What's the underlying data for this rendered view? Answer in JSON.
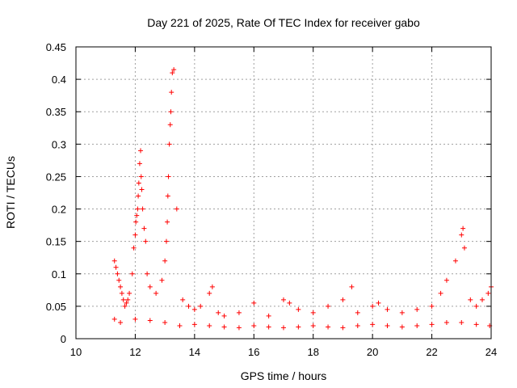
{
  "chart_data": {
    "type": "scatter",
    "title": "Day 221 of 2025, Rate Of TEC Index for receiver gabo",
    "xlabel": "GPS time / hours",
    "ylabel": "ROTI / TECUs",
    "xlim": [
      10,
      24
    ],
    "ylim": [
      0,
      0.45
    ],
    "grid": true,
    "marker": "+",
    "color": "#ff0000",
    "xticks": [
      10,
      12,
      14,
      16,
      18,
      20,
      22,
      24
    ],
    "xtick_labels": [
      "10",
      "12",
      "14",
      "16",
      "18",
      "20",
      "22",
      "24"
    ],
    "yticks": [
      0,
      0.05,
      0.1,
      0.15,
      0.2,
      0.25,
      0.3,
      0.35,
      0.4,
      0.45
    ],
    "ytick_labels": [
      "0",
      "0.05",
      "0.1",
      "0.15",
      "0.2",
      "0.25",
      "0.3",
      "0.35",
      "0.4",
      "0.45"
    ],
    "series": [
      {
        "name": "ROTI",
        "x": [
          11.3,
          11.35,
          11.4,
          11.45,
          11.5,
          11.55,
          11.6,
          11.65,
          11.7,
          11.75,
          11.8,
          11.9,
          11.95,
          12.0,
          12.02,
          12.05,
          12.08,
          12.1,
          12.12,
          12.15,
          12.18,
          12.2,
          12.22,
          12.25,
          12.3,
          12.35,
          12.4,
          12.5,
          12.7,
          12.9,
          13.0,
          13.05,
          13.08,
          13.1,
          13.12,
          13.15,
          13.18,
          13.2,
          13.22,
          13.25,
          13.3,
          13.4,
          13.6,
          13.8,
          14.0,
          14.2,
          14.5,
          14.6,
          14.8,
          15.0,
          15.5,
          16.0,
          16.5,
          17.0,
          17.2,
          17.5,
          18.0,
          18.5,
          19.0,
          19.3,
          19.5,
          20.0,
          20.2,
          20.5,
          21.0,
          21.5,
          22.0,
          22.3,
          22.5,
          22.8,
          23.0,
          23.05,
          23.1,
          23.3,
          23.5,
          23.7,
          23.9,
          24.0,
          11.3,
          11.5,
          12.0,
          12.5,
          13.0,
          13.5,
          14.0,
          14.5,
          15.0,
          15.5,
          16.0,
          16.5,
          17.0,
          17.5,
          18.0,
          18.5,
          19.0,
          19.5,
          20.0,
          20.5,
          21.0,
          21.5,
          22.0,
          22.5,
          23.0,
          23.5,
          23.95
        ],
        "y": [
          0.12,
          0.11,
          0.1,
          0.09,
          0.08,
          0.07,
          0.06,
          0.05,
          0.055,
          0.06,
          0.07,
          0.1,
          0.14,
          0.16,
          0.18,
          0.19,
          0.2,
          0.22,
          0.24,
          0.27,
          0.29,
          0.25,
          0.23,
          0.2,
          0.17,
          0.15,
          0.1,
          0.08,
          0.07,
          0.09,
          0.12,
          0.15,
          0.18,
          0.22,
          0.25,
          0.3,
          0.33,
          0.35,
          0.38,
          0.41,
          0.415,
          0.2,
          0.06,
          0.05,
          0.045,
          0.05,
          0.07,
          0.08,
          0.04,
          0.035,
          0.04,
          0.055,
          0.035,
          0.06,
          0.055,
          0.045,
          0.04,
          0.05,
          0.06,
          0.08,
          0.04,
          0.05,
          0.055,
          0.045,
          0.04,
          0.045,
          0.05,
          0.07,
          0.09,
          0.12,
          0.16,
          0.17,
          0.14,
          0.06,
          0.05,
          0.06,
          0.07,
          0.08,
          0.03,
          0.025,
          0.03,
          0.028,
          0.025,
          0.02,
          0.022,
          0.02,
          0.018,
          0.017,
          0.02,
          0.018,
          0.017,
          0.018,
          0.02,
          0.018,
          0.017,
          0.02,
          0.022,
          0.02,
          0.018,
          0.02,
          0.022,
          0.025,
          0.025,
          0.022,
          0.02
        ]
      }
    ]
  }
}
